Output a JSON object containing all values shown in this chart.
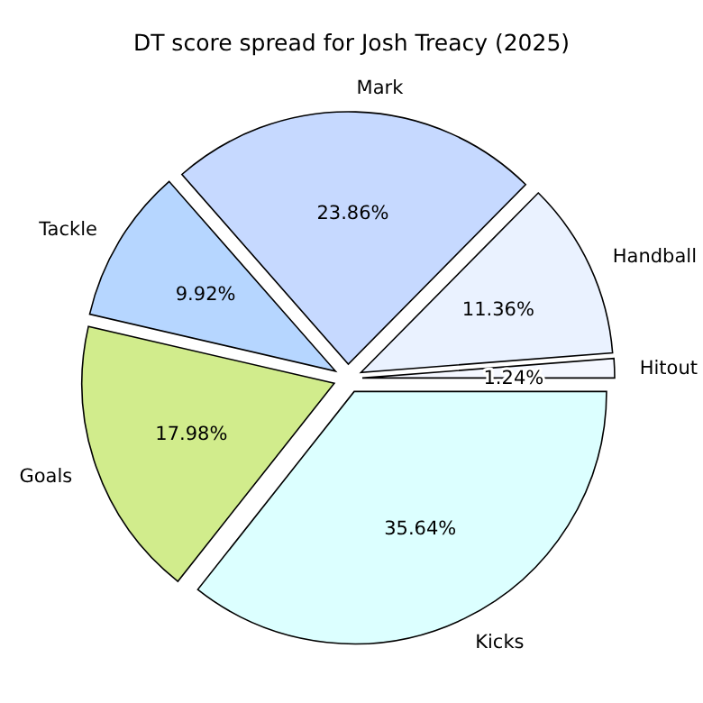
{
  "chart_data": {
    "type": "pie",
    "title": "DT score spread for Josh Treacy (2025)",
    "categories": [
      "Hitout",
      "Handball",
      "Mark",
      "Tackle",
      "Goals",
      "Kicks"
    ],
    "values": [
      1.24,
      11.36,
      23.86,
      9.92,
      17.98,
      35.64
    ],
    "colors": [
      "#f4f7ff",
      "#eaf2ff",
      "#c6d9ff",
      "#b6d6ff",
      "#d1ec8c",
      "#dcffff"
    ],
    "value_labels": [
      "1.24%",
      "11.36%",
      "23.86%",
      "9.92%",
      "17.98%",
      "35.64%"
    ]
  }
}
